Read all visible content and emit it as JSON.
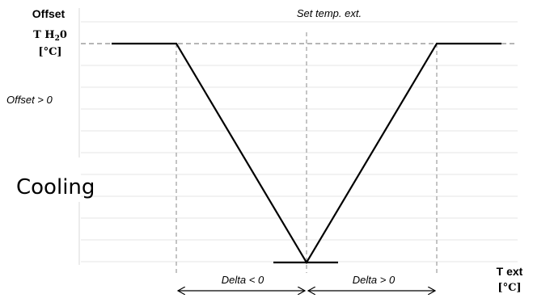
{
  "diagram": {
    "y_axis": {
      "title": "Offset",
      "subtitle_prefix": "T H",
      "subtitle_sub": "2",
      "subtitle_suffix": "0",
      "unit": "[°C]"
    },
    "x_axis": {
      "title": "T ext",
      "unit": "[°C]"
    },
    "top_label": "Set temp. ext.",
    "offset_label": "Offset > 0",
    "mode_label": "Cooling",
    "delta_left_label": "Delta < 0",
    "delta_right_label": "Delta > 0",
    "colors": {
      "curve": "#000000",
      "guide": "#8a8a8a",
      "grid": "#e6e6e6"
    }
  }
}
